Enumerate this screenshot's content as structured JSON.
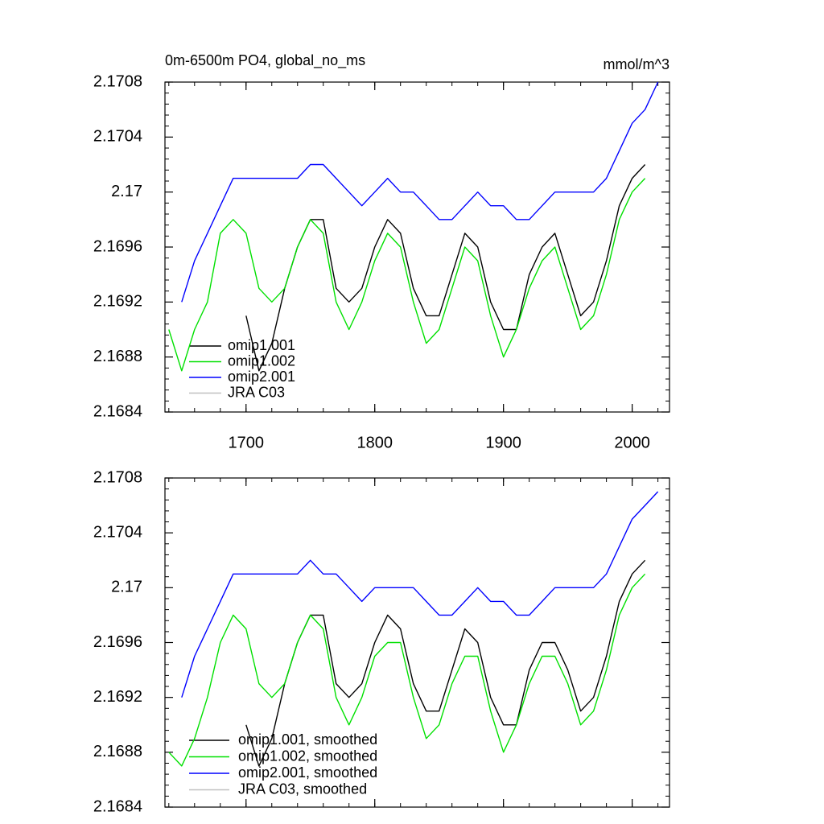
{
  "chart_data": [
    {
      "type": "line",
      "title": "0m-6500m PO4, global_no_ms",
      "subtitle": "mmol/m^3",
      "x": [
        1640,
        1650,
        1660,
        1670,
        1680,
        1690,
        1700,
        1710,
        1720,
        1730,
        1740,
        1750,
        1760,
        1770,
        1780,
        1790,
        1800,
        1810,
        1820,
        1830,
        1840,
        1850,
        1860,
        1870,
        1880,
        1890,
        1900,
        1910,
        1920,
        1930,
        1940,
        1950,
        1960,
        1970,
        1980,
        1990,
        2000,
        2010,
        2020
      ],
      "xlim": [
        1637,
        2029
      ],
      "xticks": [
        1700,
        1800,
        1900,
        2000
      ],
      "ylim": [
        2.1684,
        2.1708
      ],
      "yticks": [
        2.1684,
        2.1688,
        2.1692,
        2.1696,
        2.17,
        2.1704,
        2.1708
      ],
      "legend": "lower left",
      "series": [
        {
          "name": "omip1.001",
          "color": "#000000",
          "values": [
            null,
            null,
            null,
            null,
            null,
            null,
            2.1691,
            2.1687,
            2.1689,
            2.1693,
            2.1696,
            2.1698,
            2.1698,
            2.1693,
            2.1692,
            2.1693,
            2.1696,
            2.1698,
            2.1697,
            2.1693,
            2.1691,
            2.1691,
            2.1694,
            2.1697,
            2.1696,
            2.1692,
            2.169,
            2.169,
            2.1694,
            2.1696,
            2.1697,
            2.1694,
            2.1691,
            2.1692,
            2.1695,
            2.1699,
            2.1701,
            2.1702,
            null
          ]
        },
        {
          "name": "omip1.002",
          "color": "#00e000",
          "values": [
            2.169,
            2.1687,
            2.169,
            2.1692,
            2.1697,
            2.1698,
            2.1697,
            2.1693,
            2.1692,
            2.1693,
            2.1696,
            2.1698,
            2.1697,
            2.1692,
            2.169,
            2.1692,
            2.1695,
            2.1697,
            2.1696,
            2.1692,
            2.1689,
            2.169,
            2.1693,
            2.1696,
            2.1695,
            2.1691,
            2.1688,
            2.169,
            2.1693,
            2.1695,
            2.1696,
            2.1693,
            2.169,
            2.1691,
            2.1694,
            2.1698,
            2.17,
            2.1701,
            null
          ]
        },
        {
          "name": "omip2.001",
          "color": "#0000ff",
          "values": [
            null,
            2.1692,
            2.1695,
            2.1697,
            2.1699,
            2.1701,
            2.1701,
            2.1701,
            2.1701,
            2.1701,
            2.1701,
            2.1702,
            2.1702,
            2.1701,
            2.17,
            2.1699,
            2.17,
            2.1701,
            2.17,
            2.17,
            2.1699,
            2.1698,
            2.1698,
            2.1699,
            2.17,
            2.1699,
            2.1699,
            2.1698,
            2.1698,
            2.1699,
            2.17,
            2.17,
            2.17,
            2.17,
            2.1701,
            2.1703,
            2.1705,
            2.1706,
            2.1708
          ]
        },
        {
          "name": "JRA C03",
          "color": "#c0c0c0",
          "values": [
            null,
            null,
            null,
            null,
            null,
            null,
            null,
            null,
            null,
            null,
            null,
            null,
            null,
            null,
            null,
            null,
            null,
            null,
            null,
            null,
            null,
            null,
            null,
            null,
            null,
            null,
            null,
            null,
            null,
            null,
            null,
            null,
            null,
            null,
            null,
            null,
            null,
            null,
            null
          ]
        }
      ]
    },
    {
      "type": "line",
      "x": [
        1640,
        1650,
        1660,
        1670,
        1680,
        1690,
        1700,
        1710,
        1720,
        1730,
        1740,
        1750,
        1760,
        1770,
        1780,
        1790,
        1800,
        1810,
        1820,
        1830,
        1840,
        1850,
        1860,
        1870,
        1880,
        1890,
        1900,
        1910,
        1920,
        1930,
        1940,
        1950,
        1960,
        1970,
        1980,
        1990,
        2000,
        2010,
        2020
      ],
      "xlim": [
        1637,
        2029
      ],
      "ylim": [
        2.1684,
        2.1708
      ],
      "yticks": [
        2.1684,
        2.1688,
        2.1692,
        2.1696,
        2.17,
        2.1704,
        2.1708
      ],
      "legend": "lower left",
      "series": [
        {
          "name": "omip1.001, smoothed",
          "color": "#000000",
          "values": [
            null,
            null,
            null,
            null,
            null,
            null,
            2.169,
            2.1687,
            2.1689,
            2.1693,
            2.1696,
            2.1698,
            2.1698,
            2.1693,
            2.1692,
            2.1693,
            2.1696,
            2.1698,
            2.1697,
            2.1693,
            2.1691,
            2.1691,
            2.1694,
            2.1697,
            2.1696,
            2.1692,
            2.169,
            2.169,
            2.1694,
            2.1696,
            2.1696,
            2.1694,
            2.1691,
            2.1692,
            2.1695,
            2.1699,
            2.1701,
            2.1702,
            null
          ]
        },
        {
          "name": "omip1.002, smoothed",
          "color": "#00e000",
          "values": [
            2.1688,
            2.1687,
            2.1689,
            2.1692,
            2.1696,
            2.1698,
            2.1697,
            2.1693,
            2.1692,
            2.1693,
            2.1696,
            2.1698,
            2.1697,
            2.1692,
            2.169,
            2.1692,
            2.1695,
            2.1696,
            2.1696,
            2.1692,
            2.1689,
            2.169,
            2.1693,
            2.1695,
            2.1695,
            2.1691,
            2.1688,
            2.169,
            2.1693,
            2.1695,
            2.1695,
            2.1693,
            2.169,
            2.1691,
            2.1694,
            2.1698,
            2.17,
            2.1701,
            null
          ]
        },
        {
          "name": "omip2.001, smoothed",
          "color": "#0000ff",
          "values": [
            null,
            2.1692,
            2.1695,
            2.1697,
            2.1699,
            2.1701,
            2.1701,
            2.1701,
            2.1701,
            2.1701,
            2.1701,
            2.1702,
            2.1701,
            2.1701,
            2.17,
            2.1699,
            2.17,
            2.17,
            2.17,
            2.17,
            2.1699,
            2.1698,
            2.1698,
            2.1699,
            2.17,
            2.1699,
            2.1699,
            2.1698,
            2.1698,
            2.1699,
            2.17,
            2.17,
            2.17,
            2.17,
            2.1701,
            2.1703,
            2.1705,
            2.1706,
            2.1707
          ]
        },
        {
          "name": "JRA C03, smoothed",
          "color": "#c0c0c0",
          "values": [
            null,
            null,
            null,
            null,
            null,
            null,
            null,
            null,
            null,
            null,
            null,
            null,
            null,
            null,
            null,
            null,
            null,
            null,
            null,
            null,
            null,
            null,
            null,
            null,
            null,
            null,
            null,
            null,
            null,
            null,
            null,
            null,
            null,
            null,
            null,
            null,
            null,
            null,
            null
          ]
        }
      ]
    }
  ]
}
